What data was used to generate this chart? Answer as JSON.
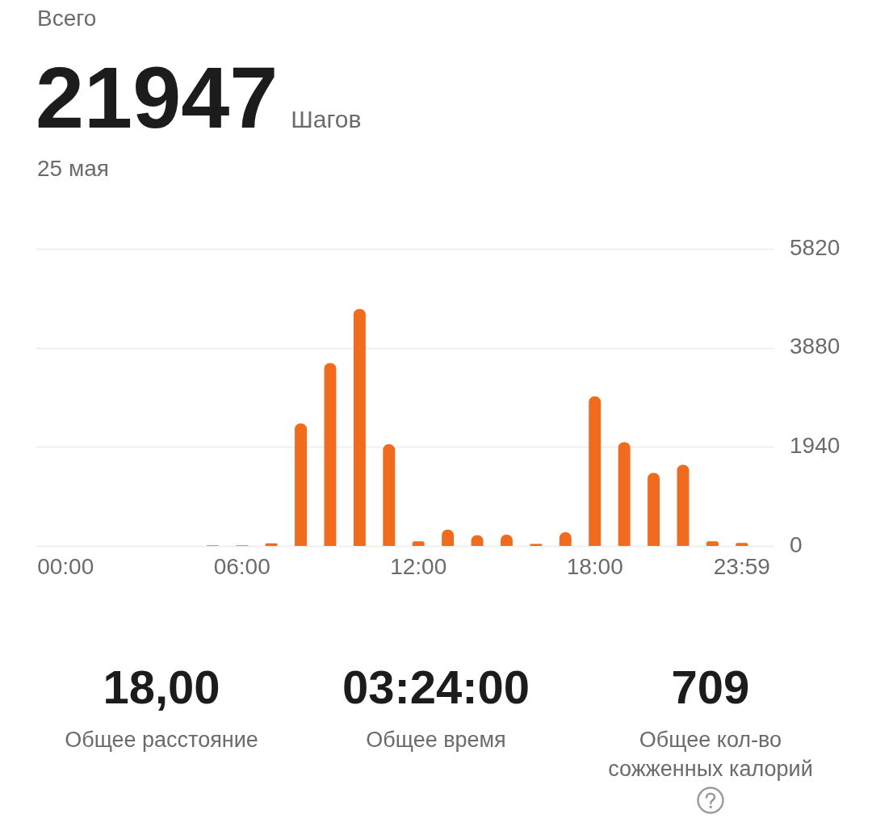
{
  "chart_data": {
    "type": "bar",
    "title": "Всего",
    "subtitle": "25 мая",
    "categories": [
      "00:00",
      null,
      null,
      null,
      null,
      null,
      "06:00",
      null,
      null,
      null,
      null,
      null,
      "12:00",
      null,
      null,
      null,
      null,
      null,
      "18:00",
      null,
      null,
      null,
      null,
      "23:59"
    ],
    "values": [
      0,
      0,
      0,
      0,
      0,
      10,
      10,
      50,
      2400,
      3580,
      4640,
      1990,
      90,
      320,
      210,
      220,
      40,
      270,
      2930,
      2030,
      1430,
      1590,
      90,
      60
    ],
    "color": "#f26b1d",
    "ylim": [
      0,
      5820
    ],
    "yticks": [
      0,
      1940,
      3880,
      5820
    ],
    "grid": "y",
    "annotations": [
      "21947",
      "Шагов",
      "18,00",
      "Общее расстояние",
      "03:24:00",
      "Общее время",
      "709",
      "Общее кол-во сожженных калорий"
    ]
  }
}
